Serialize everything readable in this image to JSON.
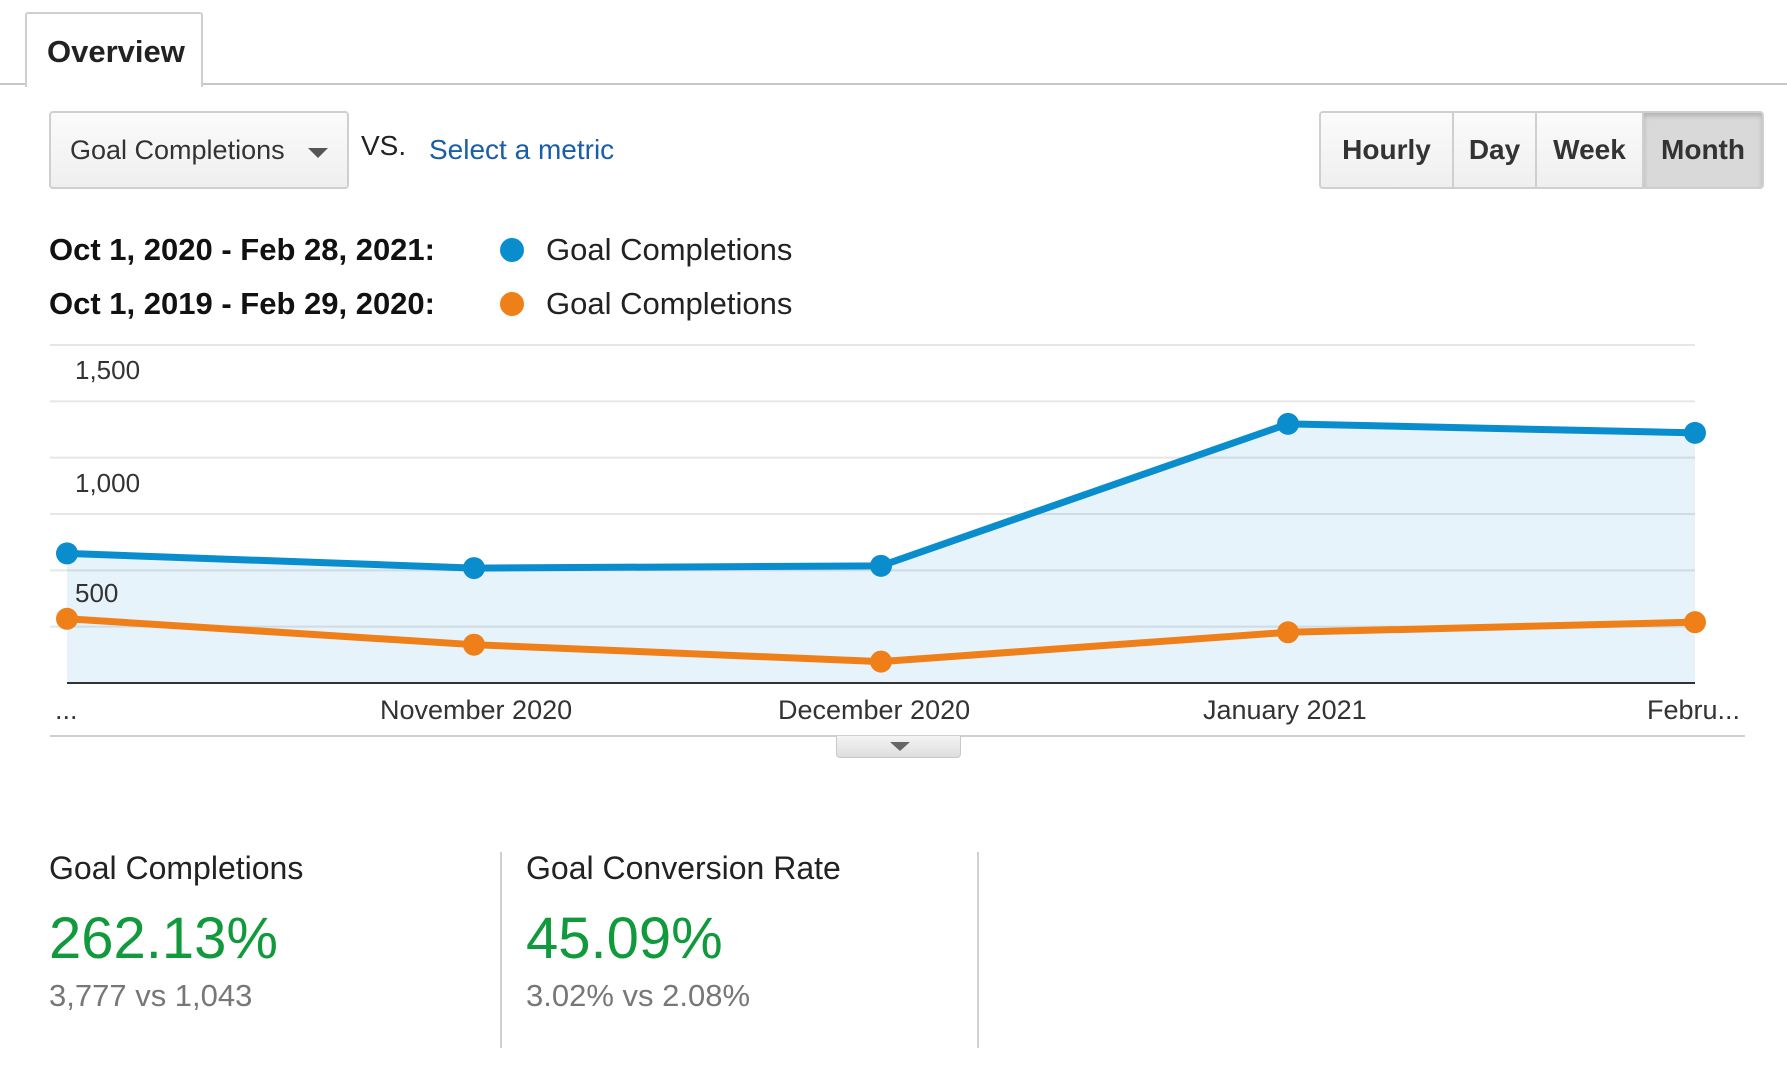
{
  "tabs": [
    {
      "label": "Overview"
    }
  ],
  "controls": {
    "metric_label": "Goal Completions",
    "vs_label": "VS.",
    "select_metric_link": "Select a metric",
    "granularity": [
      {
        "label": "Hourly",
        "active": false
      },
      {
        "label": "Day",
        "active": false
      },
      {
        "label": "Week",
        "active": false
      },
      {
        "label": "Month",
        "active": true
      }
    ]
  },
  "legend": [
    {
      "range": "Oct 1, 2020 - Feb 28, 2021:",
      "name": "Goal Completions",
      "color": "#0a8dcd"
    },
    {
      "range": "Oct 1, 2019 - Feb 29, 2020:",
      "name": "Goal Completions",
      "color": "#ef8019"
    }
  ],
  "chart_data": {
    "type": "line",
    "x": [
      "...",
      "November 2020",
      "December 2020",
      "January 2021",
      "Febru..."
    ],
    "ytick_labels": [
      "1,500",
      "1,000",
      "500"
    ],
    "ylim": [
      0,
      1500
    ],
    "grid": true,
    "series": [
      {
        "name": "Goal Completions",
        "period": "Oct 1, 2020 - Feb 28, 2021",
        "color": "#0a8dcd",
        "area": true,
        "values": [
          575,
          510,
          520,
          1150,
          1110
        ]
      },
      {
        "name": "Goal Completions",
        "period": "Oct 1, 2019 - Feb 29, 2020",
        "color": "#ef8019",
        "area": false,
        "values": [
          285,
          170,
          95,
          225,
          270
        ]
      }
    ]
  },
  "scorecards": [
    {
      "title": "Goal Completions",
      "value": "262.13%",
      "compare": "3,777 vs 1,043",
      "color": "#109a3c"
    },
    {
      "title": "Goal Conversion Rate",
      "value": "45.09%",
      "compare": "3.02% vs 2.08%",
      "color": "#109a3c"
    }
  ]
}
